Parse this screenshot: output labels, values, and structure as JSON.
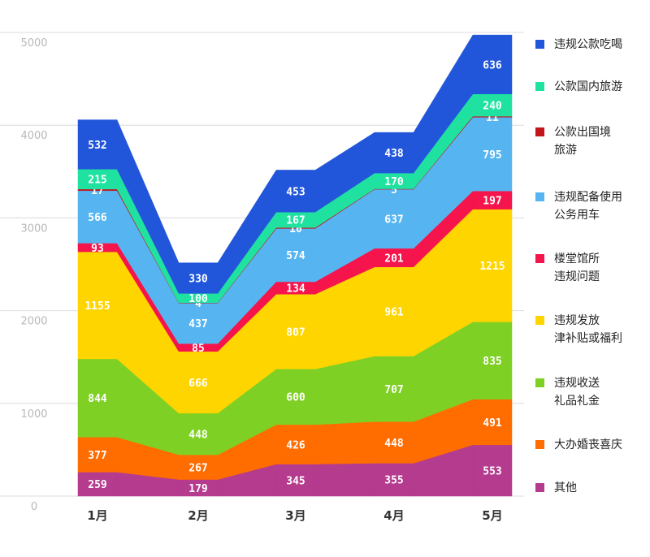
{
  "chart_data": {
    "type": "stacked-area",
    "categories": [
      "1月",
      "2月",
      "3月",
      "4月",
      "5月"
    ],
    "ylim": [
      0,
      5000
    ],
    "yticks": [
      0,
      1000,
      2000,
      3000,
      4000,
      5000
    ],
    "grid": true,
    "series": [
      {
        "name": "其他",
        "color": "#b53b8e",
        "values": [
          259,
          179,
          345,
          355,
          553
        ]
      },
      {
        "name": "大办婚丧喜庆",
        "color": "#ff6c00",
        "values": [
          377,
          267,
          426,
          448,
          491
        ]
      },
      {
        "name": "违规收送\n礼品礼金",
        "color": "#7fd024",
        "values": [
          844,
          448,
          600,
          707,
          835
        ]
      },
      {
        "name": "违规发放\n津补贴或福利",
        "color": "#ffd500",
        "values": [
          1155,
          666,
          807,
          961,
          1215
        ]
      },
      {
        "name": "楼堂馆所\n违规问题",
        "color": "#f5144b",
        "values": [
          93,
          85,
          134,
          201,
          197
        ]
      },
      {
        "name": "违规配备使用\n公务用车",
        "color": "#56b5f0",
        "values": [
          566,
          437,
          574,
          637,
          795
        ]
      },
      {
        "name": "公款出国境\n旅游",
        "color": "#c2161d",
        "values": [
          17,
          4,
          10,
          5,
          11
        ]
      },
      {
        "name": "公款国内旅游",
        "color": "#20e2a0",
        "values": [
          215,
          100,
          167,
          170,
          240
        ]
      },
      {
        "name": "违规公款吃喝",
        "color": "#2256da",
        "values": [
          532,
          330,
          453,
          438,
          636
        ]
      }
    ]
  }
}
